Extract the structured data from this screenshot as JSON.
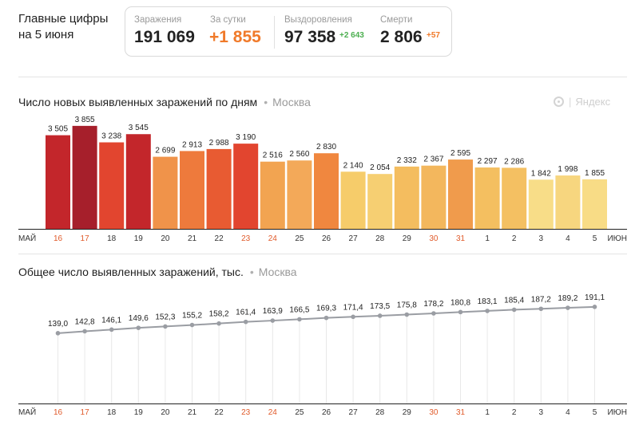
{
  "header": {
    "title_line1": "Главные цифры",
    "title_line2": "на 5 июня"
  },
  "stats": {
    "infected_label": "Заражения",
    "infected_value": "191 069",
    "daily_label": "За сутки",
    "daily_value": "+1 855",
    "recovered_label": "Выздоровления",
    "recovered_value": "97 358",
    "recovered_delta": "+2 643",
    "deaths_label": "Смерти",
    "deaths_value": "2 806",
    "deaths_delta": "+57",
    "colors": {
      "daily": "#f07a2a",
      "recovered_delta": "#4caf50",
      "deaths_delta": "#f07a2a"
    }
  },
  "watermark": "Яндекс",
  "chart_data": [
    {
      "type": "bar",
      "title": "Число новых выявленных заражений по дням",
      "region": "Москва",
      "month_start": "МАЙ",
      "month_end": "ИЮН",
      "categories": [
        "16",
        "17",
        "18",
        "19",
        "20",
        "21",
        "22",
        "23",
        "24",
        "25",
        "26",
        "27",
        "28",
        "29",
        "30",
        "31",
        "1",
        "2",
        "3",
        "4",
        "5"
      ],
      "weekend_days": [
        "16",
        "17",
        "23",
        "24",
        "30",
        "31"
      ],
      "values": [
        3505,
        3855,
        3238,
        3545,
        2699,
        2913,
        2988,
        3190,
        2516,
        2560,
        2830,
        2140,
        2054,
        2332,
        2367,
        2595,
        2297,
        2286,
        1842,
        1998,
        1855
      ],
      "value_labels": [
        "3 505",
        "3 855",
        "3 238",
        "3 545",
        "2 699",
        "2 913",
        "2 988",
        "3 190",
        "2 516",
        "2 560",
        "2 830",
        "2 140",
        "2 054",
        "2 332",
        "2 367",
        "2 595",
        "2 297",
        "2 286",
        "1 842",
        "1 998",
        "1 855"
      ],
      "bar_colors": [
        "#c3262b",
        "#a61f2b",
        "#e2452f",
        "#c3262b",
        "#f0934a",
        "#ee7a3c",
        "#e85b32",
        "#e2452f",
        "#f2a451",
        "#f3a959",
        "#f0873f",
        "#f6cc6a",
        "#f6cf72",
        "#f4bd5f",
        "#f3b75d",
        "#f09b4c",
        "#f4bf60",
        "#f4c062",
        "#f8dd88",
        "#f7d67f",
        "#f8dc86"
      ],
      "ylim": [
        0,
        4000
      ]
    },
    {
      "type": "line",
      "title": "Общее число выявленных заражений, тыс.",
      "region": "Москва",
      "month_start": "МАЙ",
      "month_end": "ИЮН",
      "categories": [
        "16",
        "17",
        "18",
        "19",
        "20",
        "21",
        "22",
        "23",
        "24",
        "25",
        "26",
        "27",
        "28",
        "29",
        "30",
        "31",
        "1",
        "2",
        "3",
        "4",
        "5"
      ],
      "weekend_days": [
        "16",
        "17",
        "23",
        "24",
        "30",
        "31"
      ],
      "values": [
        139.0,
        142.8,
        146.1,
        149.6,
        152.3,
        155.2,
        158.2,
        161.4,
        163.9,
        166.5,
        169.3,
        171.4,
        173.5,
        175.8,
        178.2,
        180.8,
        183.1,
        185.4,
        187.2,
        189.2,
        191.1
      ],
      "value_labels": [
        "139,0",
        "142,8",
        "146,1",
        "149,6",
        "152,3",
        "155,2",
        "158,2",
        "161,4",
        "163,9",
        "166,5",
        "169,3",
        "171,4",
        "173,5",
        "175,8",
        "178,2",
        "180,8",
        "183,1",
        "185,4",
        "187,2",
        "189,2",
        "191,1"
      ],
      "line_color": "#9a9da3",
      "ylim": [
        0,
        205
      ]
    }
  ],
  "colors": {
    "weekend_tick": "#e05a2a",
    "tick": "#333333",
    "grid": "#e8e8e8",
    "axis": "#222222"
  }
}
